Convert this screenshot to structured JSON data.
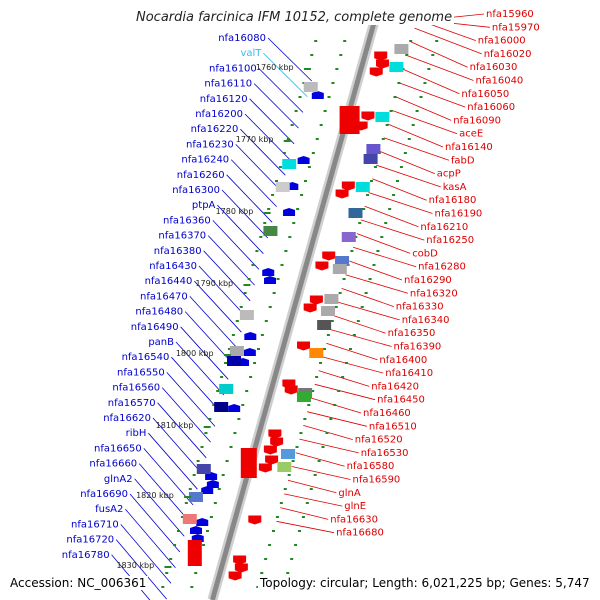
{
  "title": "Nocardia farcinica IFM 10152, complete genome",
  "accession": "Accession: NC_006361",
  "topology": "Topology: circular; Length: 6,021,225 bp; Genes: 5,747",
  "colors": {
    "left_label": "#0000cc",
    "rna_label": "#33bbee",
    "right_label": "#dd0000",
    "backbone": "#888888",
    "tick": "#228822"
  },
  "kbp_markers": [
    "1760 kbp",
    "1770 kbp",
    "1780 kbp",
    "1790 kbp",
    "1800 kbp",
    "1810 kbp",
    "1820 kbp",
    "1830 kbp"
  ],
  "left_labels": [
    {
      "text": "nfa16080",
      "type": "gene"
    },
    {
      "text": "valT",
      "type": "rna"
    },
    {
      "text": "nfa16100",
      "type": "gene"
    },
    {
      "text": "nfa16110",
      "type": "gene"
    },
    {
      "text": "nfa16120",
      "type": "gene"
    },
    {
      "text": "nfa16200",
      "type": "gene"
    },
    {
      "text": "nfa16220",
      "type": "gene"
    },
    {
      "text": "nfa16230",
      "type": "gene"
    },
    {
      "text": "nfa16240",
      "type": "gene"
    },
    {
      "text": "nfa16260",
      "type": "gene"
    },
    {
      "text": "nfa16300",
      "type": "gene"
    },
    {
      "text": "ptpA",
      "type": "gene"
    },
    {
      "text": "nfa16360",
      "type": "gene"
    },
    {
      "text": "nfa16370",
      "type": "gene"
    },
    {
      "text": "nfa16380",
      "type": "gene"
    },
    {
      "text": "nfa16430",
      "type": "gene"
    },
    {
      "text": "nfa16440",
      "type": "gene"
    },
    {
      "text": "nfa16470",
      "type": "gene"
    },
    {
      "text": "nfa16480",
      "type": "gene"
    },
    {
      "text": "nfa16490",
      "type": "gene"
    },
    {
      "text": "panB",
      "type": "gene"
    },
    {
      "text": "nfa16540",
      "type": "gene"
    },
    {
      "text": "nfa16550",
      "type": "gene"
    },
    {
      "text": "nfa16560",
      "type": "gene"
    },
    {
      "text": "nfa16570",
      "type": "gene"
    },
    {
      "text": "nfa16620",
      "type": "gene"
    },
    {
      "text": "ribH",
      "type": "gene"
    },
    {
      "text": "nfa16650",
      "type": "gene"
    },
    {
      "text": "nfa16660",
      "type": "gene"
    },
    {
      "text": "glnA2",
      "type": "gene"
    },
    {
      "text": "nfa16690",
      "type": "gene"
    },
    {
      "text": "fusA2",
      "type": "gene"
    },
    {
      "text": "nfa16710",
      "type": "gene"
    },
    {
      "text": "nfa16720",
      "type": "gene"
    },
    {
      "text": "nfa16780",
      "type": "gene"
    }
  ],
  "right_labels": [
    "nfa15960",
    "nfa15970",
    "nfa16000",
    "nfa16020",
    "nfa16030",
    "nfa16040",
    "nfa16050",
    "nfa16060",
    "nfa16090",
    "aceE",
    "nfa16140",
    "fabD",
    "acpP",
    "kasA",
    "nfa16180",
    "nfa16190",
    "nfa16210",
    "nfa16250",
    "cobD",
    "nfa16280",
    "nfa16290",
    "nfa16320",
    "nfa16330",
    "nfa16340",
    "nfa16350",
    "nfa16390",
    "nfa16400",
    "nfa16410",
    "nfa16420",
    "nfa16450",
    "nfa16460",
    "nfa16510",
    "nfa16520",
    "nfa16530",
    "nfa16580",
    "nfa16590",
    "glnA",
    "glnE",
    "nfa16630",
    "nfa16680"
  ]
}
